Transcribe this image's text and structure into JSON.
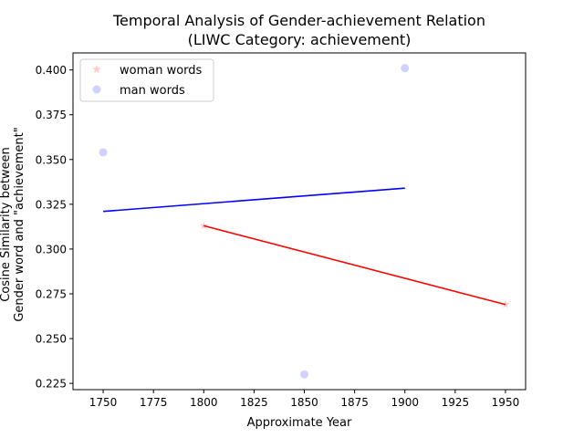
{
  "chart_data": {
    "type": "scatter",
    "title_line1": "Temporal Analysis of Gender-achievement Relation",
    "title_line2": "(LIWC Category: achievement)",
    "xlabel": "Approximate Year",
    "ylabel_line1": "Cosine Similarity between",
    "ylabel_line2": "Gender word and \"achievement\"",
    "xlim": [
      1735,
      1960
    ],
    "ylim": [
      0.2215,
      0.4095
    ],
    "xticks": [
      1750,
      1775,
      1800,
      1825,
      1850,
      1875,
      1900,
      1925,
      1950
    ],
    "yticks": [
      0.225,
      0.25,
      0.275,
      0.3,
      0.325,
      0.35,
      0.375,
      0.4
    ],
    "xtick_labels": [
      "1750",
      "1775",
      "1800",
      "1825",
      "1850",
      "1875",
      "1900",
      "1925",
      "1950"
    ],
    "ytick_labels": [
      "0.225",
      "0.250",
      "0.275",
      "0.300",
      "0.325",
      "0.350",
      "0.375",
      "0.400"
    ],
    "legend_position": "upper-left",
    "series": [
      {
        "name": "woman words",
        "marker": "star",
        "point_color": "#ffb3b3",
        "line_color": "#ff0000",
        "points": [
          {
            "x": 1800,
            "y": 0.313
          },
          {
            "x": 1950,
            "y": 0.269
          }
        ],
        "trend": [
          {
            "x": 1800,
            "y": 0.313
          },
          {
            "x": 1950,
            "y": 0.269
          }
        ]
      },
      {
        "name": "man words",
        "marker": "circle",
        "point_color": "#b3b3ff",
        "line_color": "#0000ff",
        "points": [
          {
            "x": 1750,
            "y": 0.354
          },
          {
            "x": 1850,
            "y": 0.23
          },
          {
            "x": 1900,
            "y": 0.401
          }
        ],
        "trend": [
          {
            "x": 1750,
            "y": 0.321
          },
          {
            "x": 1900,
            "y": 0.334
          }
        ]
      }
    ]
  }
}
